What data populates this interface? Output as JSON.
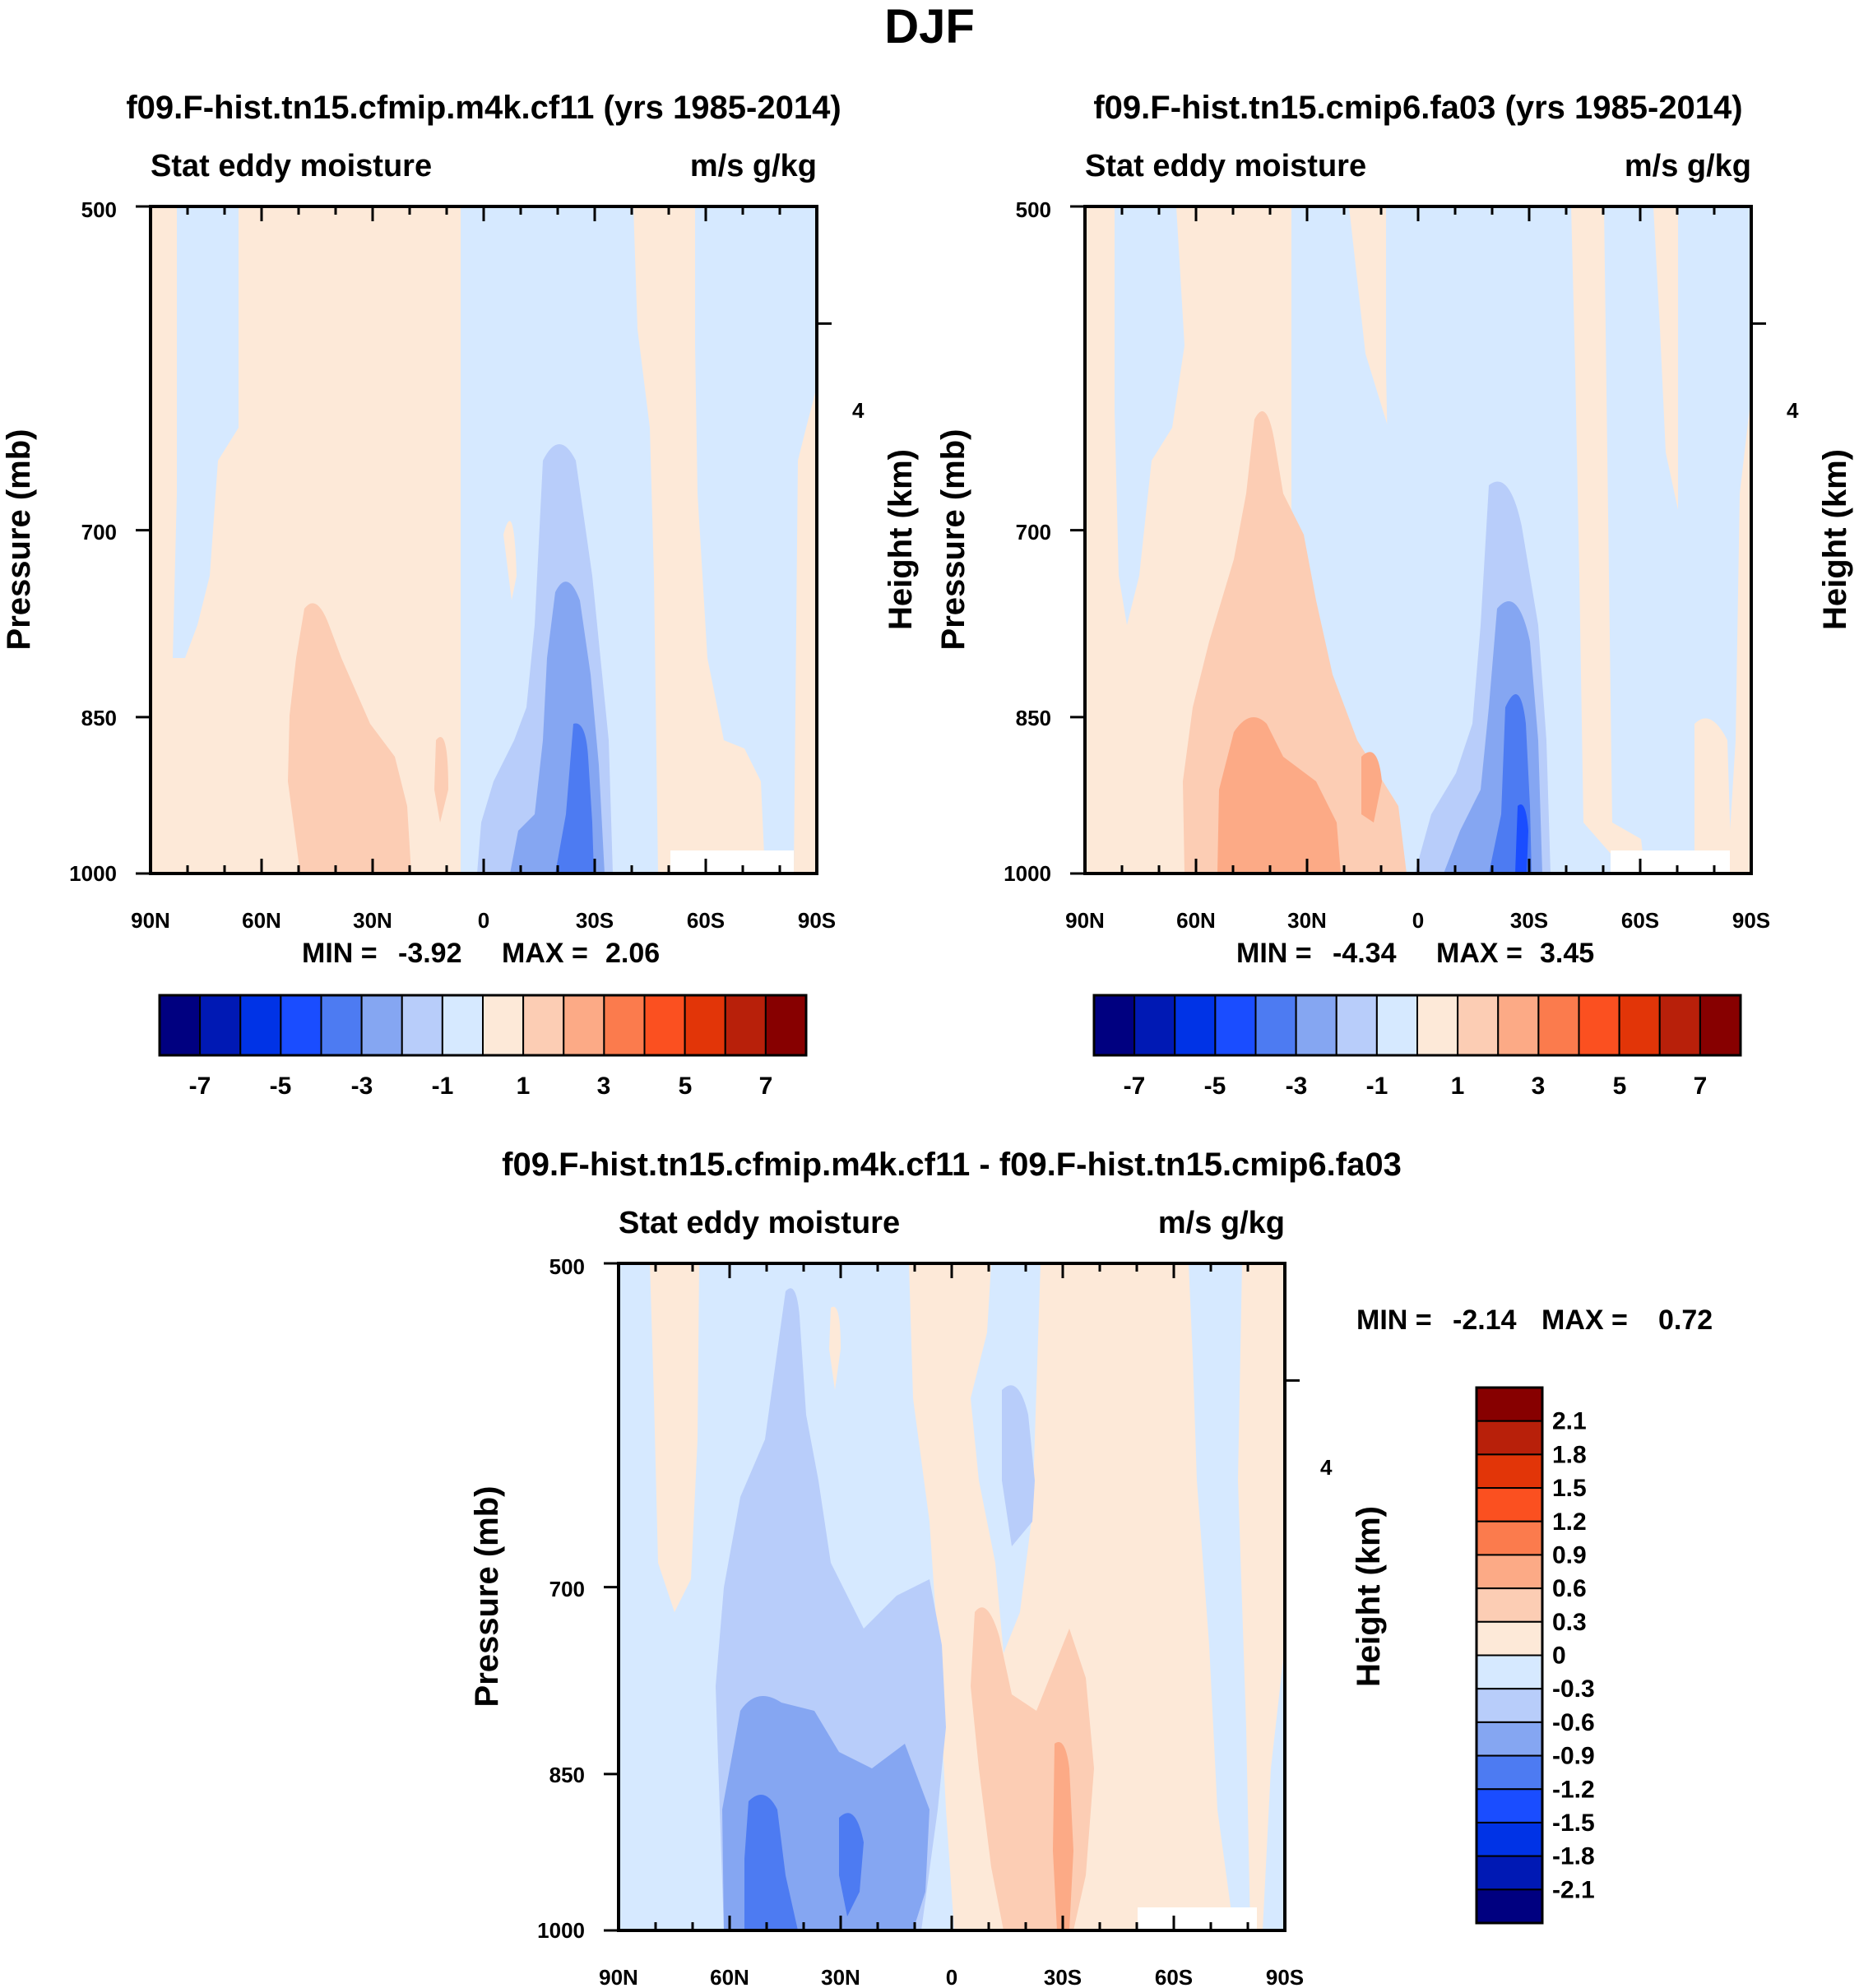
{
  "season_title": "DJF",
  "chart_data": [
    {
      "type": "heatmap",
      "title": "f09.F-hist.tn15.cfmip.m4k.cf11 (yrs 1985-2014)",
      "variable_label": "Stat eddy moisture",
      "units_label": "m/s g/kg",
      "ylabel": "Pressure (mb)",
      "ylabel_right": "Height (km)",
      "x_ticks": [
        "90N",
        "60N",
        "30N",
        "0",
        "30S",
        "60S",
        "90S"
      ],
      "y_ticks": [
        "500",
        "700",
        "850",
        "1000"
      ],
      "y_right_ticks": [
        "4"
      ],
      "ylim": [
        1000,
        500
      ],
      "stats": {
        "min_label": "MIN =",
        "min": "-3.92",
        "max_label": "MAX =",
        "max": "2.06"
      },
      "colorbar_labels": [
        "-7",
        "-5",
        "-3",
        "-1",
        "1",
        "3",
        "5",
        "7"
      ],
      "regions": [
        {
          "name": "positive-bands-north",
          "lat_range": [
            80,
            0
          ],
          "level": 1
        },
        {
          "name": "positive-core-30-50N",
          "lat_range": [
            55,
            25
          ],
          "level": 3
        },
        {
          "name": "negative-band-south",
          "lat_range": [
            0,
            -35
          ],
          "level": -1
        },
        {
          "name": "negative-core-25S",
          "lat_range": [
            -15,
            -35
          ],
          "level": -3
        },
        {
          "name": "negative-max-25S",
          "lat_range": [
            -22,
            -32
          ],
          "level": -5
        }
      ]
    },
    {
      "type": "heatmap",
      "title": "f09.F-hist.tn15.cmip6.fa03 (yrs 1985-2014)",
      "variable_label": "Stat eddy moisture",
      "units_label": "m/s g/kg",
      "ylabel": "Pressure (mb)",
      "ylabel_right": "Height (km)",
      "x_ticks": [
        "90N",
        "60N",
        "30N",
        "0",
        "30S",
        "60S",
        "90S"
      ],
      "y_ticks": [
        "500",
        "700",
        "850",
        "1000"
      ],
      "y_right_ticks": [
        "4"
      ],
      "ylim": [
        1000,
        500
      ],
      "stats": {
        "min_label": "MIN =",
        "min": "-4.34",
        "max_label": "MAX =",
        "max": "3.45"
      },
      "colorbar_labels": [
        "-7",
        "-5",
        "-3",
        "-1",
        "1",
        "3",
        "5",
        "7"
      ],
      "regions": [
        {
          "name": "positive-bands-north",
          "lat_range": [
            75,
            0
          ],
          "level": 1
        },
        {
          "name": "positive-core-30-60N",
          "lat_range": [
            65,
            15
          ],
          "level": 3
        },
        {
          "name": "negative-band-south",
          "lat_range": [
            0,
            -35
          ],
          "level": -1
        },
        {
          "name": "negative-core-25S",
          "lat_range": [
            -15,
            -35
          ],
          "level": -3
        },
        {
          "name": "negative-max-25S",
          "lat_range": [
            -22,
            -32
          ],
          "level": -5
        }
      ]
    },
    {
      "type": "heatmap",
      "title": "f09.F-hist.tn15.cfmip.m4k.cf11 - f09.F-hist.tn15.cmip6.fa03",
      "variable_label": "Stat eddy moisture",
      "units_label": "m/s g/kg",
      "ylabel": "Pressure (mb)",
      "ylabel_right": "Height (km)",
      "x_ticks": [
        "90N",
        "60N",
        "30N",
        "0",
        "30S",
        "60S",
        "90S"
      ],
      "y_ticks": [
        "500",
        "700",
        "850",
        "1000"
      ],
      "y_right_ticks": [
        "4"
      ],
      "ylim": [
        1000,
        500
      ],
      "stats": {
        "min_label": "MIN =",
        "min": "-2.14",
        "max_label": "MAX =",
        "max": "0.72"
      },
      "colorbar_labels": [
        "2.1",
        "1.8",
        "1.5",
        "1.2",
        "0.9",
        "0.6",
        "0.3",
        "0",
        "-0.3",
        "-0.6",
        "-0.9",
        "-1.2",
        "-1.5",
        "-1.8",
        "-2.1"
      ],
      "regions": [
        {
          "name": "negative-band-north",
          "lat_range": [
            70,
            0
          ],
          "level": -0.3
        },
        {
          "name": "negative-core-40-60N",
          "lat_range": [
            60,
            10
          ],
          "level": -0.9
        },
        {
          "name": "positive-band-south",
          "lat_range": [
            0,
            -60
          ],
          "level": 0.3
        },
        {
          "name": "positive-core-30S",
          "lat_range": [
            -10,
            -35
          ],
          "level": 0.6
        }
      ]
    }
  ],
  "palette": [
    "#000080",
    "#0019b4",
    "#0033e6",
    "#1a4dff",
    "#4d7bf2",
    "#85a6f2",
    "#b8cdfa",
    "#d6e9ff",
    "#fde9d8",
    "#fccdb4",
    "#fcaa86",
    "#fb7b4d",
    "#fb5020",
    "#e23508",
    "#b8200a",
    "#870000"
  ],
  "palette_diff": [
    "#870000",
    "#b8200a",
    "#e23508",
    "#fb5020",
    "#fb7b4d",
    "#fcaa86",
    "#fccdb4",
    "#fde9d8",
    "#d6e9ff",
    "#b8cdfa",
    "#85a6f2",
    "#4d7bf2",
    "#1a4dff",
    "#0033e6",
    "#0019b4",
    "#000080"
  ]
}
